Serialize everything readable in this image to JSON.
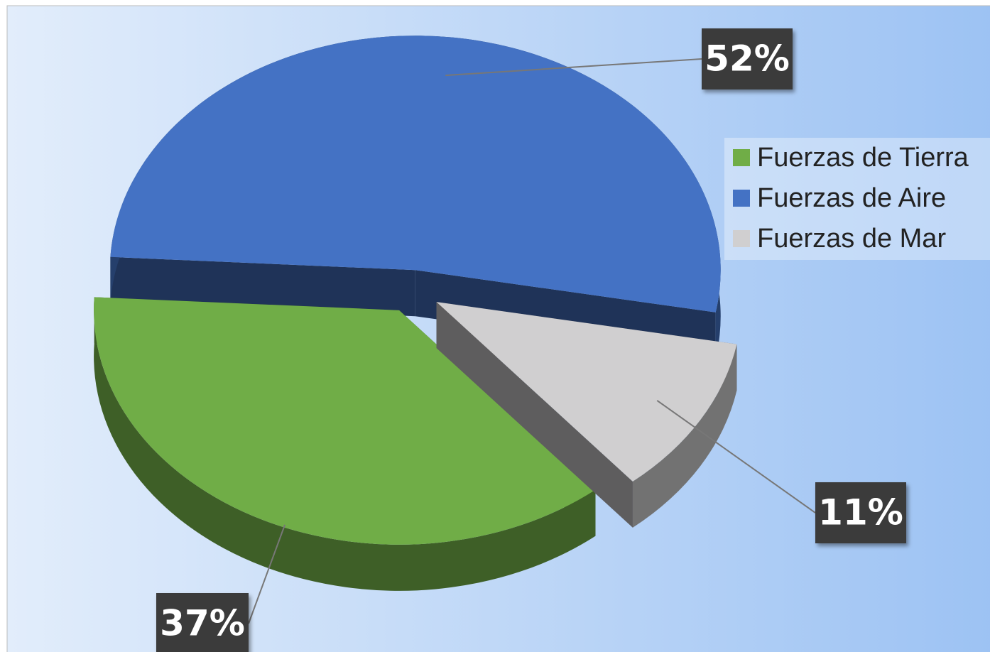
{
  "chart_data": {
    "type": "pie",
    "categories": [
      "Fuerzas de Tierra",
      "Fuerzas de Aire",
      "Fuerzas de Mar"
    ],
    "values": [
      37,
      52,
      11
    ],
    "value_labels": [
      "37%",
      "52%",
      "11%"
    ],
    "colors": [
      "#70ad47",
      "#4472c4",
      "#d0cfd0"
    ],
    "legend": "right"
  }
}
